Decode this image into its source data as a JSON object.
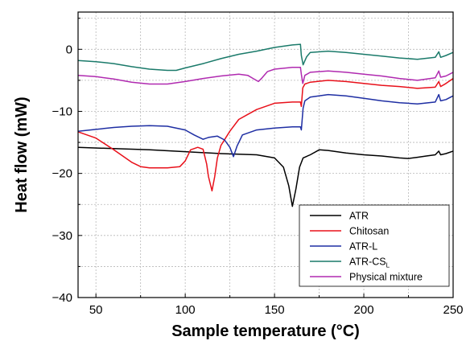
{
  "chart_data": {
    "type": "line",
    "title": "",
    "xlabel": "Sample temperature (°C)",
    "ylabel": "Heat flow (mW)",
    "xlim": [
      40,
      250
    ],
    "ylim": [
      -40,
      6
    ],
    "x_ticks": [
      50,
      100,
      150,
      200,
      250
    ],
    "y_ticks": [
      0,
      -10,
      -20,
      -30,
      -40
    ],
    "x_tick_labels": [
      "50",
      "100",
      "150",
      "200",
      "250"
    ],
    "y_tick_labels": [
      "0",
      "−10",
      "−20",
      "−30",
      "−40"
    ],
    "grid": true,
    "legend_position": "bottom-right",
    "series": [
      {
        "name": "ATR",
        "color": "#000000",
        "points": [
          [
            40,
            -15.8
          ],
          [
            60,
            -16.0
          ],
          [
            80,
            -16.2
          ],
          [
            100,
            -16.5
          ],
          [
            120,
            -16.8
          ],
          [
            140,
            -17.0
          ],
          [
            150,
            -17.5
          ],
          [
            155,
            -19.0
          ],
          [
            158,
            -22.0
          ],
          [
            160,
            -25.3
          ],
          [
            162,
            -22.5
          ],
          [
            164,
            -19.0
          ],
          [
            166,
            -17.5
          ],
          [
            170,
            -17.0
          ],
          [
            175,
            -16.2
          ],
          [
            180,
            -16.3
          ],
          [
            190,
            -16.7
          ],
          [
            200,
            -17.0
          ],
          [
            210,
            -17.2
          ],
          [
            220,
            -17.5
          ],
          [
            225,
            -17.6
          ],
          [
            230,
            -17.4
          ],
          [
            235,
            -17.2
          ],
          [
            240,
            -17.0
          ],
          [
            242,
            -16.4
          ],
          [
            243,
            -17.0
          ],
          [
            246,
            -16.8
          ],
          [
            250,
            -16.4
          ]
        ]
      },
      {
        "name": "Chitosan",
        "color": "#e8101a",
        "points": [
          [
            40,
            -13.3
          ],
          [
            50,
            -14.3
          ],
          [
            60,
            -16.2
          ],
          [
            70,
            -18.2
          ],
          [
            75,
            -18.9
          ],
          [
            80,
            -19.1
          ],
          [
            90,
            -19.1
          ],
          [
            97,
            -18.9
          ],
          [
            100,
            -18.0
          ],
          [
            103,
            -16.2
          ],
          [
            107,
            -15.8
          ],
          [
            110,
            -16.1
          ],
          [
            112,
            -18.5
          ],
          [
            113,
            -20.5
          ],
          [
            115,
            -22.8
          ],
          [
            116.5,
            -20.5
          ],
          [
            118,
            -17.5
          ],
          [
            120,
            -15.5
          ],
          [
            125,
            -13.2
          ],
          [
            130,
            -11.3
          ],
          [
            135,
            -10.5
          ],
          [
            140,
            -9.7
          ],
          [
            150,
            -8.7
          ],
          [
            160,
            -8.5
          ],
          [
            164.5,
            -8.5
          ],
          [
            165,
            -9.2
          ],
          [
            165.8,
            -6.2
          ],
          [
            167,
            -5.6
          ],
          [
            170,
            -5.3
          ],
          [
            180,
            -5.0
          ],
          [
            190,
            -5.2
          ],
          [
            200,
            -5.5
          ],
          [
            210,
            -5.8
          ],
          [
            220,
            -6.0
          ],
          [
            230,
            -6.3
          ],
          [
            240,
            -6.1
          ],
          [
            242,
            -5.2
          ],
          [
            243,
            -6.0
          ],
          [
            246,
            -5.5
          ],
          [
            250,
            -4.7
          ]
        ]
      },
      {
        "name": "ATR-L",
        "color": "#1e2ea3",
        "points": [
          [
            40,
            -13.2
          ],
          [
            50,
            -12.9
          ],
          [
            60,
            -12.6
          ],
          [
            70,
            -12.4
          ],
          [
            80,
            -12.3
          ],
          [
            90,
            -12.4
          ],
          [
            100,
            -13.0
          ],
          [
            105,
            -13.8
          ],
          [
            110,
            -14.5
          ],
          [
            113,
            -14.2
          ],
          [
            118,
            -14.0
          ],
          [
            122,
            -14.6
          ],
          [
            125,
            -15.8
          ],
          [
            127,
            -17.3
          ],
          [
            129,
            -15.6
          ],
          [
            132,
            -13.8
          ],
          [
            140,
            -13.0
          ],
          [
            150,
            -12.7
          ],
          [
            160,
            -12.5
          ],
          [
            164.5,
            -12.5
          ],
          [
            165,
            -13.0
          ],
          [
            166,
            -9.5
          ],
          [
            167,
            -8.3
          ],
          [
            170,
            -7.7
          ],
          [
            180,
            -7.3
          ],
          [
            190,
            -7.5
          ],
          [
            200,
            -7.9
          ],
          [
            210,
            -8.3
          ],
          [
            220,
            -8.6
          ],
          [
            230,
            -8.8
          ],
          [
            240,
            -8.5
          ],
          [
            242,
            -7.3
          ],
          [
            243,
            -8.3
          ],
          [
            246,
            -8.1
          ],
          [
            250,
            -7.5
          ]
        ]
      },
      {
        "name": "ATR-CS",
        "name_subscript": "L",
        "color": "#1a7a6a",
        "points": [
          [
            40,
            -1.8
          ],
          [
            50,
            -2.0
          ],
          [
            60,
            -2.3
          ],
          [
            70,
            -2.8
          ],
          [
            80,
            -3.2
          ],
          [
            90,
            -3.4
          ],
          [
            95,
            -3.4
          ],
          [
            100,
            -3.0
          ],
          [
            110,
            -2.3
          ],
          [
            120,
            -1.5
          ],
          [
            130,
            -0.8
          ],
          [
            140,
            -0.3
          ],
          [
            150,
            0.3
          ],
          [
            160,
            0.7
          ],
          [
            164.5,
            0.8
          ],
          [
            165,
            -1.0
          ],
          [
            166,
            -2.5
          ],
          [
            168,
            -1.2
          ],
          [
            170,
            -0.5
          ],
          [
            180,
            -0.3
          ],
          [
            190,
            -0.5
          ],
          [
            200,
            -0.8
          ],
          [
            210,
            -1.1
          ],
          [
            220,
            -1.4
          ],
          [
            230,
            -1.6
          ],
          [
            240,
            -1.3
          ],
          [
            242,
            -0.4
          ],
          [
            243,
            -1.3
          ],
          [
            246,
            -1.0
          ],
          [
            250,
            -0.5
          ]
        ]
      },
      {
        "name": "Physical mixture",
        "color": "#b02ab0",
        "points": [
          [
            40,
            -4.2
          ],
          [
            50,
            -4.4
          ],
          [
            60,
            -4.8
          ],
          [
            70,
            -5.3
          ],
          [
            80,
            -5.6
          ],
          [
            90,
            -5.6
          ],
          [
            100,
            -5.2
          ],
          [
            110,
            -4.7
          ],
          [
            120,
            -4.3
          ],
          [
            130,
            -4.0
          ],
          [
            135,
            -4.2
          ],
          [
            138,
            -4.7
          ],
          [
            141,
            -5.2
          ],
          [
            143,
            -4.6
          ],
          [
            146,
            -3.6
          ],
          [
            150,
            -3.2
          ],
          [
            160,
            -2.9
          ],
          [
            164.5,
            -2.9
          ],
          [
            165,
            -4.0
          ],
          [
            165.8,
            -5.5
          ],
          [
            167,
            -4.2
          ],
          [
            170,
            -3.7
          ],
          [
            180,
            -3.5
          ],
          [
            190,
            -3.7
          ],
          [
            200,
            -4.0
          ],
          [
            210,
            -4.3
          ],
          [
            220,
            -4.7
          ],
          [
            230,
            -5.0
          ],
          [
            240,
            -4.6
          ],
          [
            242,
            -3.5
          ],
          [
            243,
            -4.5
          ],
          [
            246,
            -4.3
          ],
          [
            250,
            -3.7
          ]
        ]
      }
    ]
  }
}
